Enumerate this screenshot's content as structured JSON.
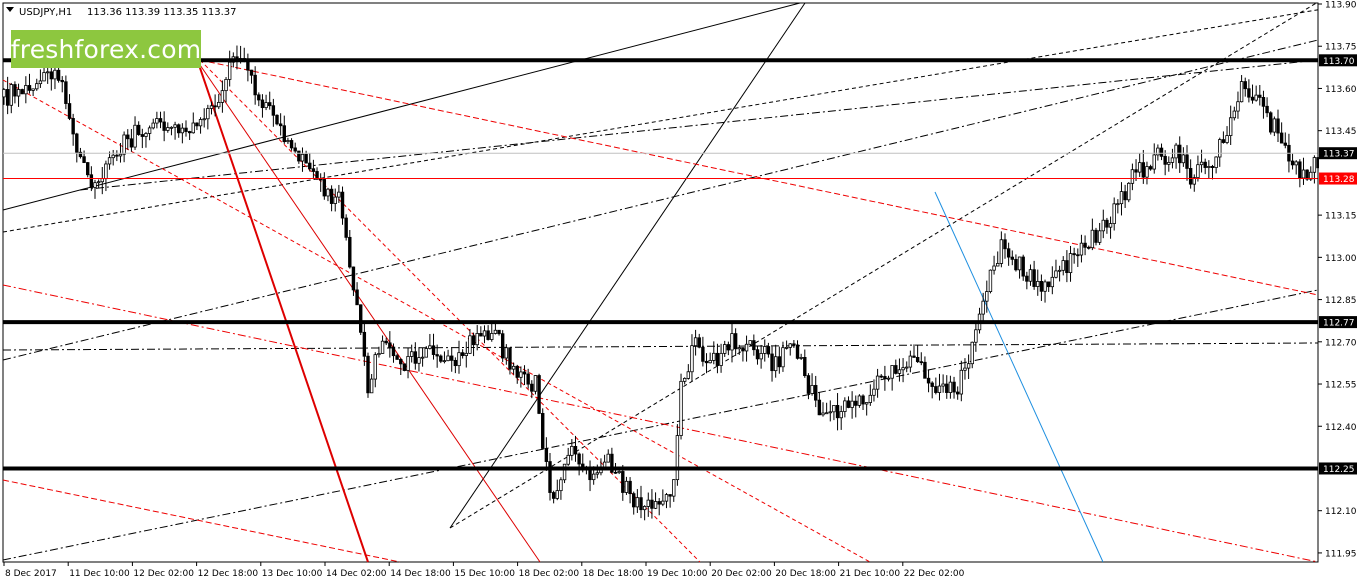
{
  "header": {
    "symbol_label": "USDJPY,H1",
    "ohlc": "113.36 113.39 113.35 113.37"
  },
  "logo": {
    "text": "freshforex.com",
    "color": "#8dc73f"
  },
  "price_axis": {
    "ticks": [
      "113.90",
      "113.75",
      "113.60",
      "113.45",
      "113.15",
      "113.00",
      "112.85",
      "112.70",
      "112.55",
      "112.40",
      "112.10",
      "111.95"
    ]
  },
  "price_labels": [
    {
      "name": "level-113-70",
      "text": "113.70",
      "value": 113.7,
      "color": "#000000",
      "text_color": "#ffffff"
    },
    {
      "name": "current-price",
      "text": "113.37",
      "value": 113.37,
      "color": "#000000",
      "text_color": "#ffffff"
    },
    {
      "name": "level-113-28",
      "text": "113.28",
      "value": 113.28,
      "color": "#ff0000",
      "text_color": "#ffffff"
    },
    {
      "name": "level-112-77",
      "text": "112.77",
      "value": 112.77,
      "color": "#000000",
      "text_color": "#ffffff"
    },
    {
      "name": "level-112-25",
      "text": "112.25",
      "value": 112.25,
      "color": "#000000",
      "text_color": "#ffffff"
    }
  ],
  "time_axis": {
    "labels": [
      "8 Dec 2017",
      "11 Dec 10:00",
      "12 Dec 02:00",
      "12 Dec 18:00",
      "13 Dec 10:00",
      "14 Dec 02:00",
      "14 Dec 18:00",
      "15 Dec 10:00",
      "18 Dec 02:00",
      "18 Dec 18:00",
      "19 Dec 10:00",
      "20 Dec 02:00",
      "20 Dec 18:00",
      "21 Dec 10:00",
      "22 Dec 02:00"
    ]
  },
  "chart_data": {
    "type": "candlestick",
    "symbol": "USDJPY",
    "timeframe": "H1",
    "ylim": [
      111.9,
      113.92
    ],
    "horizontal_levels": [
      {
        "value": 113.7,
        "color": "#000000",
        "style": "solid-thick"
      },
      {
        "value": 113.28,
        "color": "#ff0000",
        "style": "solid"
      },
      {
        "value": 112.77,
        "color": "#000000",
        "style": "solid-thick"
      },
      {
        "value": 112.25,
        "color": "#000000",
        "style": "solid-thick"
      },
      {
        "value": 113.37,
        "color": "#c0c0c0",
        "style": "current-price"
      }
    ],
    "bar_count": 233,
    "path_points": [
      [
        0,
        113.57
      ],
      [
        10,
        113.62
      ],
      [
        15,
        113.65
      ],
      [
        20,
        113.4
      ],
      [
        25,
        113.25
      ],
      [
        33,
        113.4
      ],
      [
        40,
        113.48
      ],
      [
        50,
        113.45
      ],
      [
        58,
        113.55
      ],
      [
        64,
        113.72
      ],
      [
        70,
        113.58
      ],
      [
        78,
        113.4
      ],
      [
        84,
        113.3
      ],
      [
        92,
        113.2
      ],
      [
        96,
        112.9
      ],
      [
        100,
        112.55
      ],
      [
        104,
        112.72
      ],
      [
        110,
        112.62
      ],
      [
        116,
        112.68
      ],
      [
        122,
        112.62
      ],
      [
        128,
        112.7
      ],
      [
        134,
        112.75
      ],
      [
        140,
        112.6
      ],
      [
        146,
        112.55
      ],
      [
        150,
        112.15
      ],
      [
        156,
        112.3
      ],
      [
        160,
        112.22
      ],
      [
        166,
        112.28
      ],
      [
        172,
        112.15
      ],
      [
        178,
        112.1
      ],
      [
        184,
        112.2
      ],
      [
        186,
        112.55
      ],
      [
        190,
        112.7
      ],
      [
        194,
        112.62
      ],
      [
        200,
        112.7
      ],
      [
        206,
        112.68
      ],
      [
        212,
        112.62
      ],
      [
        216,
        112.7
      ],
      [
        222,
        112.52
      ],
      [
        226,
        112.42
      ],
      [
        232,
        112.5
      ],
      [
        238,
        112.52
      ],
      [
        244,
        112.6
      ],
      [
        250,
        112.62
      ],
      [
        256,
        112.55
      ],
      [
        262,
        112.52
      ],
      [
        266,
        112.7
      ],
      [
        270,
        112.9
      ],
      [
        274,
        113.05
      ],
      [
        280,
        112.95
      ],
      [
        286,
        112.88
      ],
      [
        292,
        112.98
      ],
      [
        298,
        113.05
      ],
      [
        304,
        113.15
      ],
      [
        310,
        113.28
      ],
      [
        316,
        113.35
      ],
      [
        322,
        113.38
      ],
      [
        326,
        113.28
      ],
      [
        332,
        113.35
      ],
      [
        336,
        113.45
      ],
      [
        340,
        113.6
      ],
      [
        346,
        113.52
      ],
      [
        352,
        113.4
      ],
      [
        356,
        113.28
      ],
      [
        360,
        113.34
      ],
      [
        364,
        113.3
      ],
      [
        370,
        113.37
      ]
    ]
  }
}
